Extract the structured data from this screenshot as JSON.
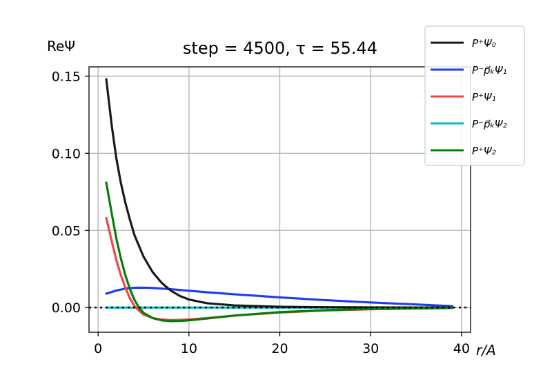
{
  "chart_data": {
    "type": "line",
    "title": "step = 4500, τ = 55.44",
    "xlabel": "r/A",
    "ylabel": "ReΨ",
    "xlim": [
      -1,
      41
    ],
    "ylim": [
      -0.016,
      0.156
    ],
    "xticks": [
      0,
      10,
      20,
      30,
      40
    ],
    "yticks": [
      0.0,
      0.05,
      0.1,
      0.15
    ],
    "xtick_labels": [
      "0",
      "10",
      "20",
      "30",
      "40"
    ],
    "ytick_labels": [
      "0.00",
      "0.05",
      "0.10",
      "0.15"
    ],
    "grid": true,
    "legend_position": "upper-right, outside",
    "zero_line": "dotted black at y = 0",
    "series": [
      {
        "name": "P⁺Ψ₀",
        "color": "#1a1a1a",
        "points": [
          [
            0.9,
            0.148
          ],
          [
            1.5,
            0.118
          ],
          [
            2,
            0.097
          ],
          [
            2.5,
            0.081
          ],
          [
            3,
            0.068
          ],
          [
            3.5,
            0.057
          ],
          [
            4,
            0.047
          ],
          [
            5,
            0.033
          ],
          [
            6,
            0.023
          ],
          [
            7,
            0.016
          ],
          [
            8,
            0.011
          ],
          [
            9,
            0.0075
          ],
          [
            10,
            0.0052
          ],
          [
            12,
            0.0028
          ],
          [
            15,
            0.0014
          ],
          [
            20,
            0.0005
          ],
          [
            25,
            0.0002
          ],
          [
            30,
            0.0001
          ],
          [
            35,
            0.0
          ],
          [
            39,
            0.0
          ]
        ]
      },
      {
        "name": "P⁻p⃗ₖΨ₁",
        "color": "#1f3cf5",
        "points": [
          [
            0.9,
            0.009
          ],
          [
            2,
            0.011
          ],
          [
            3,
            0.0123
          ],
          [
            4,
            0.0128
          ],
          [
            5,
            0.0129
          ],
          [
            6,
            0.0127
          ],
          [
            8,
            0.0119
          ],
          [
            10,
            0.0109
          ],
          [
            12,
            0.0099
          ],
          [
            15,
            0.0086
          ],
          [
            20,
            0.0066
          ],
          [
            25,
            0.0048
          ],
          [
            30,
            0.0033
          ],
          [
            35,
            0.002
          ],
          [
            39,
            0.0009
          ]
        ]
      },
      {
        "name": "P⁺Ψ₁",
        "color": "#f04646",
        "points": [
          [
            0.9,
            0.058
          ],
          [
            1.5,
            0.043
          ],
          [
            2,
            0.031
          ],
          [
            2.5,
            0.021
          ],
          [
            3,
            0.013
          ],
          [
            3.5,
            0.006
          ],
          [
            4,
            0.001
          ],
          [
            4.5,
            -0.002
          ],
          [
            5,
            -0.0045
          ],
          [
            6,
            -0.0068
          ],
          [
            7,
            -0.0078
          ],
          [
            8,
            -0.0081
          ],
          [
            9,
            -0.008
          ],
          [
            10,
            -0.0077
          ],
          [
            12,
            -0.0068
          ],
          [
            15,
            -0.0052
          ],
          [
            20,
            -0.0032
          ],
          [
            25,
            -0.0019
          ],
          [
            30,
            -0.0011
          ],
          [
            35,
            -0.0006
          ],
          [
            39,
            -0.0003
          ]
        ]
      },
      {
        "name": "P⁻p⃗ₖΨ₂",
        "color": "#00bfbf",
        "points": [
          [
            0.9,
            0.0
          ],
          [
            5,
            0.0
          ],
          [
            10,
            0.0
          ],
          [
            20,
            0.0
          ],
          [
            30,
            0.0
          ],
          [
            39,
            0.0
          ]
        ]
      },
      {
        "name": "P⁺Ψ₂",
        "color": "#0a7a0a",
        "points": [
          [
            0.9,
            0.081
          ],
          [
            1.5,
            0.061
          ],
          [
            2,
            0.045
          ],
          [
            2.5,
            0.032
          ],
          [
            3,
            0.021
          ],
          [
            3.5,
            0.012
          ],
          [
            4,
            0.005
          ],
          [
            4.5,
            0.0
          ],
          [
            5,
            -0.0035
          ],
          [
            6,
            -0.0068
          ],
          [
            7,
            -0.0083
          ],
          [
            8,
            -0.0088
          ],
          [
            9,
            -0.0087
          ],
          [
            10,
            -0.0083
          ],
          [
            12,
            -0.0071
          ],
          [
            15,
            -0.0052
          ],
          [
            20,
            -0.003
          ],
          [
            25,
            -0.0017
          ],
          [
            30,
            -0.0009
          ],
          [
            35,
            -0.0005
          ],
          [
            39,
            -0.0002
          ]
        ]
      }
    ]
  }
}
